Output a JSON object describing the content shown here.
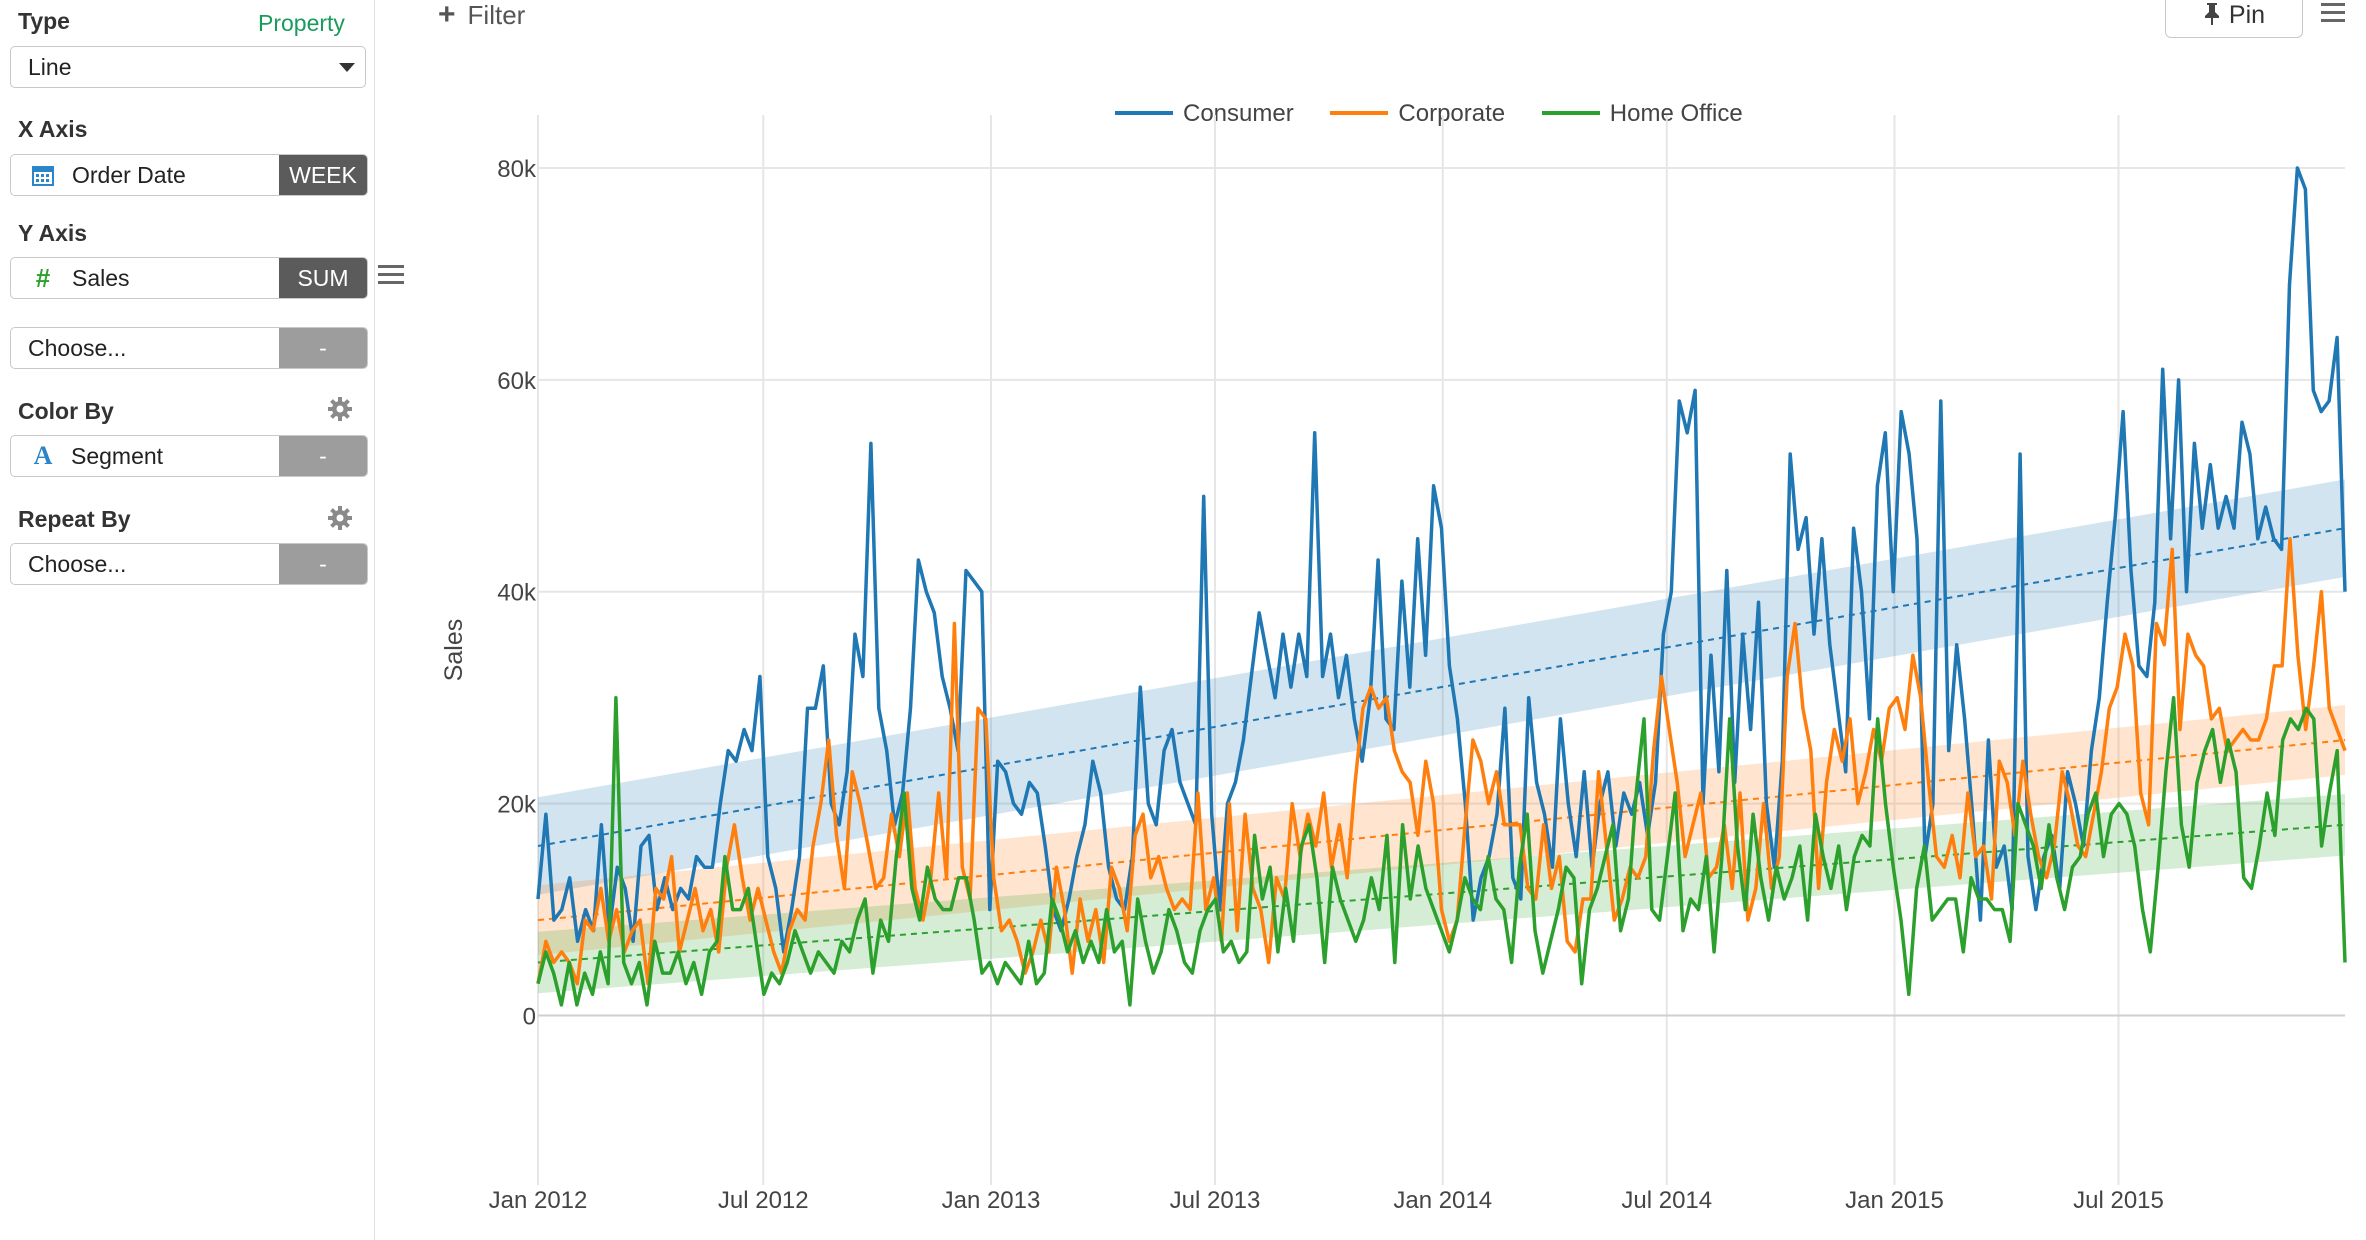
{
  "sidebar": {
    "type_label": "Type",
    "property_link": "Property",
    "type_value": "Line",
    "xaxis_label": "X Axis",
    "xaxis_field": "Order Date",
    "xaxis_agg": "WEEK",
    "yaxis_label": "Y Axis",
    "yaxis_field": "Sales",
    "yaxis_agg": "SUM",
    "choose_placeholder": "Choose...",
    "dash": "-",
    "colorby_label": "Color By",
    "colorby_field": "Segment",
    "repeatby_label": "Repeat By",
    "repeatby_value": "Choose..."
  },
  "toolbar": {
    "filter_label": "Filter",
    "pin_label": "Pin"
  },
  "icons": {
    "calendar": "calendar-icon",
    "hash": "hash-icon",
    "text_a": "text-type-icon",
    "gear": "gear-icon",
    "menu": "menu-icon",
    "pin": "pin-icon",
    "plus": "plus-icon"
  },
  "colors": {
    "consumer": "#1f77b4",
    "corporate": "#ff7f0e",
    "home_office": "#2ca02c",
    "property_link": "#1a9b5e",
    "agg_dark": "#5b5b5b",
    "agg_grey": "#9d9d9d"
  },
  "chart_data": {
    "type": "line",
    "ylabel": "Sales",
    "xlabel": "",
    "x_range": [
      "2012-01-01",
      "2015-12-31"
    ],
    "ylim": [
      -16000,
      85000
    ],
    "y_ticks": [
      0,
      20000,
      40000,
      60000,
      80000
    ],
    "y_tick_labels": [
      "0",
      "20k",
      "40k",
      "60k",
      "80k"
    ],
    "x_ticks": [
      "2012-01-01",
      "2012-07-01",
      "2013-01-01",
      "2013-07-01",
      "2014-01-01",
      "2014-07-01",
      "2015-01-01",
      "2015-07-01"
    ],
    "x_tick_labels": [
      "Jan 2012",
      "Jul 2012",
      "Jan 2013",
      "Jul 2013",
      "Jan 2014",
      "Jul 2014",
      "Jan 2015",
      "Jul 2015"
    ],
    "grid": true,
    "legend_position": "top-center",
    "trend_lines": "linear, dashed, with shaded confidence band",
    "series": [
      {
        "name": "Consumer",
        "color": "#1f77b4",
        "trend": [
          16000,
          46000
        ],
        "values": [
          11000,
          19000,
          9000,
          10000,
          13000,
          7000,
          10000,
          8000,
          18000,
          8000,
          14000,
          12000,
          7000,
          16000,
          17000,
          10000,
          13000,
          10000,
          12000,
          11000,
          15000,
          14000,
          14000,
          20000,
          25000,
          24000,
          27000,
          25000,
          32000,
          15000,
          12000,
          6000,
          10000,
          15000,
          29000,
          29000,
          33000,
          20000,
          18000,
          23000,
          36000,
          32000,
          54000,
          29000,
          25000,
          18000,
          21000,
          29000,
          43000,
          40000,
          38000,
          32000,
          29000,
          25000,
          42000,
          41000,
          40000,
          10000,
          24000,
          23000,
          20000,
          19000,
          22000,
          21000,
          16000,
          10000,
          8000,
          11000,
          15000,
          18000,
          24000,
          21000,
          14000,
          11000,
          10000,
          15000,
          31000,
          20000,
          18000,
          25000,
          27000,
          22000,
          20000,
          18000,
          49000,
          19000,
          10000,
          20000,
          22000,
          26000,
          32000,
          38000,
          34000,
          30000,
          36000,
          31000,
          36000,
          32000,
          55000,
          32000,
          36000,
          30000,
          34000,
          28000,
          24000,
          30000,
          43000,
          28000,
          27000,
          41000,
          31000,
          45000,
          34000,
          50000,
          46000,
          33000,
          28000,
          20000,
          9000,
          13000,
          15000,
          19000,
          29000,
          13000,
          11000,
          30000,
          22000,
          19000,
          14000,
          28000,
          20000,
          15000,
          23000,
          14000,
          20000,
          23000,
          16000,
          21000,
          19000,
          22000,
          17000,
          22000,
          36000,
          40000,
          58000,
          55000,
          59000,
          20000,
          34000,
          23000,
          42000,
          22000,
          36000,
          27000,
          39000,
          20000,
          14000,
          24000,
          53000,
          44000,
          47000,
          36000,
          45000,
          35000,
          29000,
          23000,
          46000,
          40000,
          28000,
          50000,
          55000,
          40000,
          57000,
          53000,
          45000,
          15000,
          20000,
          58000,
          25000,
          35000,
          28000,
          19000,
          9000,
          26000,
          14000,
          16000,
          10000,
          53000,
          15000,
          10000,
          15000,
          17000,
          12000,
          23000,
          20000,
          16000,
          25000,
          30000,
          39000,
          47000,
          57000,
          42000,
          33000,
          32000,
          39000,
          61000,
          45000,
          60000,
          40000,
          54000,
          46000,
          52000,
          46000,
          49000,
          46000,
          56000,
          53000,
          45000,
          48000,
          45000,
          44000,
          69000,
          80000,
          78000,
          59000,
          57000,
          58000,
          64000,
          40000
        ]
      },
      {
        "name": "Corporate",
        "color": "#ff7f0e",
        "trend": [
          9000,
          26000
        ],
        "values": [
          3000,
          7000,
          5000,
          6000,
          5000,
          3000,
          9000,
          8000,
          12000,
          7000,
          10000,
          6000,
          8000,
          9000,
          3000,
          12000,
          11000,
          15000,
          6000,
          9000,
          12000,
          8000,
          10000,
          6000,
          14000,
          18000,
          13000,
          9000,
          12000,
          9000,
          6000,
          4000,
          8000,
          10000,
          9000,
          16000,
          20000,
          26000,
          17000,
          12000,
          23000,
          20000,
          16000,
          12000,
          13000,
          19000,
          15000,
          21000,
          12000,
          9000,
          13000,
          21000,
          13000,
          37000,
          14000,
          11000,
          29000,
          28000,
          13000,
          8000,
          9000,
          7000,
          4000,
          6000,
          9000,
          6000,
          14000,
          10000,
          4000,
          11000,
          7000,
          10000,
          5000,
          14000,
          12000,
          8000,
          17000,
          19000,
          13000,
          15000,
          12000,
          10000,
          11000,
          10000,
          21000,
          10000,
          13000,
          7000,
          20000,
          8000,
          19000,
          12000,
          10000,
          5000,
          13000,
          11000,
          20000,
          15000,
          19000,
          16000,
          21000,
          14000,
          18000,
          13000,
          22000,
          29000,
          31000,
          29000,
          30000,
          25000,
          23000,
          22000,
          17000,
          24000,
          20000,
          10000,
          7000,
          9000,
          18000,
          26000,
          24000,
          20000,
          23000,
          18000,
          18000,
          18000,
          12000,
          11000,
          18000,
          12000,
          15000,
          7000,
          6000,
          11000,
          11000,
          23000,
          16000,
          9000,
          11000,
          14000,
          13000,
          15000,
          25000,
          32000,
          27000,
          22000,
          15000,
          18000,
          21000,
          13000,
          14000,
          18000,
          12000,
          21000,
          9000,
          12000,
          20000,
          12000,
          15000,
          32000,
          37000,
          29000,
          25000,
          12000,
          22000,
          27000,
          24000,
          28000,
          20000,
          23000,
          27000,
          24000,
          29000,
          30000,
          27000,
          34000,
          30000,
          22000,
          15000,
          14000,
          17000,
          13000,
          21000,
          15000,
          16000,
          11000,
          24000,
          22000,
          17000,
          24000,
          19000,
          15000,
          13000,
          16000,
          23000,
          20000,
          16000,
          15000,
          19000,
          23000,
          29000,
          31000,
          36000,
          33000,
          21000,
          18000,
          37000,
          35000,
          44000,
          27000,
          36000,
          34000,
          33000,
          28000,
          29000,
          25000,
          26000,
          27000,
          26000,
          26000,
          28000,
          33000,
          33000,
          45000,
          34000,
          27000,
          33000,
          40000,
          29000,
          27000,
          25000
        ]
      },
      {
        "name": "Home Office",
        "color": "#2ca02c",
        "trend": [
          5000,
          18000
        ],
        "values": [
          3000,
          6000,
          4000,
          1000,
          5000,
          1000,
          4000,
          2000,
          6000,
          3000,
          30000,
          5000,
          3000,
          5000,
          1000,
          7000,
          4000,
          4000,
          6000,
          3000,
          5000,
          2000,
          6000,
          7000,
          15000,
          10000,
          10000,
          12000,
          7000,
          2000,
          4000,
          3000,
          5000,
          8000,
          6000,
          4000,
          6000,
          5000,
          4000,
          7000,
          6000,
          9000,
          11000,
          4000,
          9000,
          7000,
          15000,
          21000,
          12000,
          9000,
          14000,
          11000,
          10000,
          10000,
          13000,
          13000,
          9000,
          4000,
          5000,
          3000,
          5000,
          4000,
          3000,
          7000,
          3000,
          4000,
          11000,
          9000,
          6000,
          8000,
          5000,
          7000,
          5000,
          10000,
          6000,
          7000,
          1000,
          11000,
          7000,
          4000,
          6000,
          10000,
          8000,
          5000,
          4000,
          8000,
          10000,
          11000,
          6000,
          7000,
          5000,
          6000,
          17000,
          11000,
          14000,
          6000,
          12000,
          7000,
          16000,
          18000,
          13000,
          5000,
          14000,
          11000,
          9000,
          7000,
          9000,
          13000,
          10000,
          17000,
          5000,
          18000,
          11000,
          16000,
          12000,
          10000,
          8000,
          6000,
          9000,
          13000,
          11000,
          10000,
          15000,
          11000,
          10000,
          5000,
          14000,
          19000,
          8000,
          4000,
          7000,
          10000,
          14000,
          13000,
          3000,
          10000,
          12000,
          15000,
          18000,
          8000,
          11000,
          21000,
          28000,
          10000,
          9000,
          15000,
          21000,
          8000,
          11000,
          10000,
          15000,
          6000,
          15000,
          28000,
          16000,
          10000,
          19000,
          13000,
          9000,
          14000,
          11000,
          13000,
          16000,
          9000,
          19000,
          15000,
          12000,
          16000,
          10000,
          15000,
          17000,
          16000,
          28000,
          20000,
          14000,
          9000,
          2000,
          12000,
          16000,
          9000,
          10000,
          11000,
          11000,
          6000,
          13000,
          11000,
          11000,
          10000,
          10000,
          7000,
          20000,
          18000,
          16000,
          12000,
          18000,
          13000,
          10000,
          14000,
          15000,
          19000,
          21000,
          15000,
          19000,
          20000,
          19000,
          16000,
          10000,
          6000,
          14000,
          23000,
          30000,
          18000,
          14000,
          22000,
          25000,
          27000,
          22000,
          26000,
          23000,
          13000,
          12000,
          16000,
          21000,
          17000,
          26000,
          28000,
          27000,
          29000,
          28000,
          16000,
          21000,
          25000,
          5000
        ]
      }
    ]
  }
}
